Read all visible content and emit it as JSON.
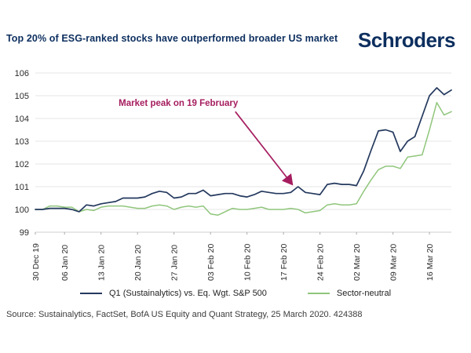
{
  "header": {
    "title": "Top 20% of ESG-ranked stocks have outperformed broader US market",
    "logo": "Schroders"
  },
  "chart_data": {
    "type": "line",
    "title": "Top 20% of ESG-ranked stocks have outperformed broader US market",
    "xlabel": "",
    "ylabel": "",
    "ylim": [
      99,
      106
    ],
    "yticks": [
      99,
      100,
      101,
      102,
      103,
      104,
      105,
      106
    ],
    "grid": true,
    "legend_position": "bottom",
    "xtick_labels": [
      "30 Dec 19",
      "06 Jan 20",
      "13 Jan 20",
      "20 Jan 20",
      "27 Jan 20",
      "03 Feb 20",
      "10 Feb 20",
      "17 Feb 20",
      "24 Feb 20",
      "02 Mar 20",
      "09 Mar 20",
      "16 Mar 20"
    ],
    "xtick_indices": [
      0,
      4,
      9,
      14,
      19,
      24,
      29,
      34,
      39,
      44,
      49,
      54
    ],
    "x_dates": [
      "30 Dec",
      "31 Dec",
      "02 Jan",
      "03 Jan",
      "06 Jan",
      "07 Jan",
      "08 Jan",
      "09 Jan",
      "10 Jan",
      "13 Jan",
      "14 Jan",
      "15 Jan",
      "16 Jan",
      "17 Jan",
      "20 Jan",
      "21 Jan",
      "22 Jan",
      "23 Jan",
      "24 Jan",
      "27 Jan",
      "28 Jan",
      "29 Jan",
      "30 Jan",
      "31 Jan",
      "03 Feb",
      "04 Feb",
      "05 Feb",
      "06 Feb",
      "07 Feb",
      "10 Feb",
      "11 Feb",
      "12 Feb",
      "13 Feb",
      "14 Feb",
      "17 Feb",
      "18 Feb",
      "19 Feb",
      "20 Feb",
      "21 Feb",
      "24 Feb",
      "25 Feb",
      "26 Feb",
      "27 Feb",
      "28 Feb",
      "02 Mar",
      "03 Mar",
      "04 Mar",
      "05 Mar",
      "06 Mar",
      "09 Mar",
      "10 Mar",
      "11 Mar",
      "12 Mar",
      "13 Mar",
      "16 Mar",
      "17 Mar",
      "18 Mar",
      "19 Mar"
    ],
    "series": [
      {
        "name": "Q1 (Sustainalytics) vs. Eq. Wgt. S&P 500",
        "color": "#24395e",
        "width": 1.7,
        "values": [
          100.0,
          100.0,
          100.05,
          100.05,
          100.05,
          100.0,
          99.9,
          100.2,
          100.15,
          100.25,
          100.3,
          100.35,
          100.5,
          100.5,
          100.5,
          100.55,
          100.7,
          100.8,
          100.75,
          100.5,
          100.55,
          100.7,
          100.7,
          100.85,
          100.6,
          100.65,
          100.7,
          100.7,
          100.6,
          100.55,
          100.65,
          100.8,
          100.75,
          100.7,
          100.7,
          100.75,
          101.0,
          100.75,
          100.7,
          100.65,
          101.1,
          101.15,
          101.1,
          101.1,
          101.05,
          101.7,
          102.6,
          103.45,
          103.5,
          103.4,
          102.55,
          103.0,
          103.2,
          104.1,
          105.0,
          105.35,
          105.05,
          105.25
        ]
      },
      {
        "name": "Sector-neutral",
        "color": "#90c67c",
        "width": 1.5,
        "values": [
          100.0,
          100.0,
          100.15,
          100.15,
          100.1,
          100.1,
          99.9,
          100.0,
          99.95,
          100.1,
          100.15,
          100.15,
          100.15,
          100.1,
          100.05,
          100.05,
          100.15,
          100.2,
          100.15,
          100.0,
          100.1,
          100.15,
          100.1,
          100.15,
          99.8,
          99.75,
          99.9,
          100.05,
          100.0,
          100.0,
          100.05,
          100.1,
          100.0,
          100.0,
          100.0,
          100.05,
          100.0,
          99.85,
          99.9,
          99.95,
          100.2,
          100.25,
          100.2,
          100.2,
          100.25,
          100.8,
          101.3,
          101.75,
          101.9,
          101.9,
          101.8,
          102.3,
          102.35,
          102.4,
          103.5,
          104.7,
          104.15,
          104.3
        ]
      }
    ],
    "annotation": {
      "text": "Market peak on 19 February",
      "color": "#a51d5f",
      "text_pos": {
        "x_index": 19.6,
        "y_value": 104.55
      },
      "arrow": {
        "from": {
          "x_index": 27.4,
          "y_value": 104.3
        },
        "to": {
          "x_index": 35.2,
          "y_value": 101.1
        }
      }
    }
  },
  "legend": {
    "items": [
      {
        "label": "Q1 (Sustainalytics) vs. Eq. Wgt. S&P 500",
        "color": "#24395e"
      },
      {
        "label": "Sector-neutral",
        "color": "#90c67c"
      }
    ]
  },
  "source": "Source: Sustainalytics, FactSet, BofA US Equity and Quant Strategy, 25 March 2020. 424388"
}
